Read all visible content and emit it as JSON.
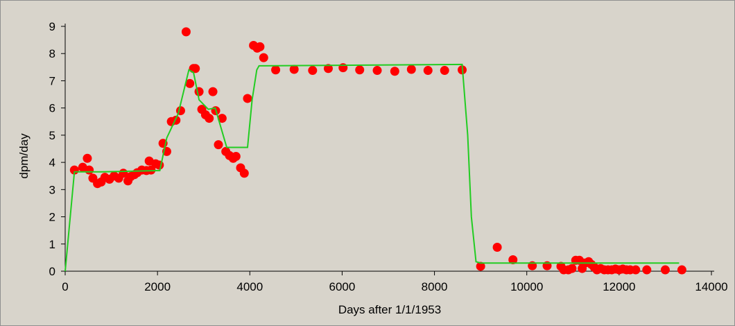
{
  "chart_data": {
    "type": "scatter",
    "title": "",
    "xlabel": "Days after 1/1/1953",
    "ylabel": "dpm/day",
    "xlim": [
      0,
      14000
    ],
    "ylim": [
      0,
      9
    ],
    "x_ticks": [
      "0",
      "2000",
      "4000",
      "6000",
      "8000",
      "10000",
      "12000",
      "14000"
    ],
    "y_ticks": [
      "0",
      "1",
      "2",
      "3",
      "4",
      "5",
      "6",
      "7",
      "8",
      "9"
    ],
    "grid": false,
    "legend": "none",
    "colors": {
      "points": "#ff0000",
      "line": "#22cc22",
      "plot_bg": "#d8d4cb",
      "axis": "#000000"
    },
    "series": [
      {
        "type": "scatter",
        "x": [
          200,
          380,
          480,
          520,
          600,
          700,
          780,
          860,
          960,
          1060,
          1160,
          1260,
          1360,
          1420,
          1500,
          1560,
          1660,
          1760,
          1820,
          1860,
          1960,
          2040,
          2120,
          2200,
          2300,
          2400,
          2500,
          2620,
          2700,
          2780,
          2820,
          2900,
          2960,
          3040,
          3120,
          3200,
          3260,
          3320,
          3400,
          3480,
          3560,
          3640,
          3700,
          3800,
          3880,
          3950,
          4080,
          4160,
          4220,
          4300,
          4560,
          4960,
          5360,
          5700,
          6020,
          6380,
          6760,
          7140,
          7500,
          7860,
          8220,
          8600,
          9000,
          9360,
          9700,
          10120,
          10440,
          10740,
          10800,
          10900,
          10980,
          11060,
          11140,
          11200,
          11260,
          11340,
          11400,
          11460,
          11520,
          11600,
          11680,
          11760,
          11840,
          11920,
          12000,
          12080,
          12160,
          12240,
          12360,
          12600,
          13000,
          13360
        ],
        "y": [
          3.72,
          3.82,
          4.15,
          3.72,
          3.42,
          3.22,
          3.28,
          3.45,
          3.38,
          3.5,
          3.42,
          3.6,
          3.32,
          3.48,
          3.55,
          3.62,
          3.72,
          3.7,
          4.05,
          3.72,
          3.95,
          3.9,
          4.7,
          4.4,
          5.5,
          5.55,
          5.9,
          8.8,
          6.9,
          7.45,
          7.45,
          6.6,
          5.95,
          5.75,
          5.62,
          6.6,
          5.9,
          4.65,
          5.62,
          4.4,
          4.25,
          4.15,
          4.22,
          3.8,
          3.6,
          6.35,
          8.3,
          8.2,
          8.25,
          7.85,
          7.4,
          7.42,
          7.38,
          7.45,
          7.48,
          7.4,
          7.38,
          7.35,
          7.42,
          7.38,
          7.38,
          7.4,
          0.18,
          0.88,
          0.42,
          0.2,
          0.2,
          0.18,
          0.05,
          0.05,
          0.1,
          0.4,
          0.4,
          0.1,
          0.3,
          0.35,
          0.25,
          0.15,
          0.05,
          0.1,
          0.05,
          0.05,
          0.05,
          0.08,
          0.05,
          0.08,
          0.05,
          0.05,
          0.05,
          0.05,
          0.05,
          0.05
        ]
      },
      {
        "type": "line",
        "x": [
          0,
          200,
          800,
          2050,
          2200,
          2450,
          2680,
          2780,
          2900,
          3100,
          3250,
          3500,
          3950,
          4050,
          4150,
          4200,
          8600,
          8720,
          8800,
          8900,
          9000,
          13300
        ],
        "y": [
          0,
          3.65,
          3.65,
          3.7,
          4.9,
          5.8,
          7.4,
          7.3,
          6.3,
          5.95,
          6.0,
          4.55,
          4.55,
          6.3,
          7.4,
          7.55,
          7.6,
          5.0,
          2.0,
          0.35,
          0.3,
          0.3
        ]
      }
    ]
  }
}
